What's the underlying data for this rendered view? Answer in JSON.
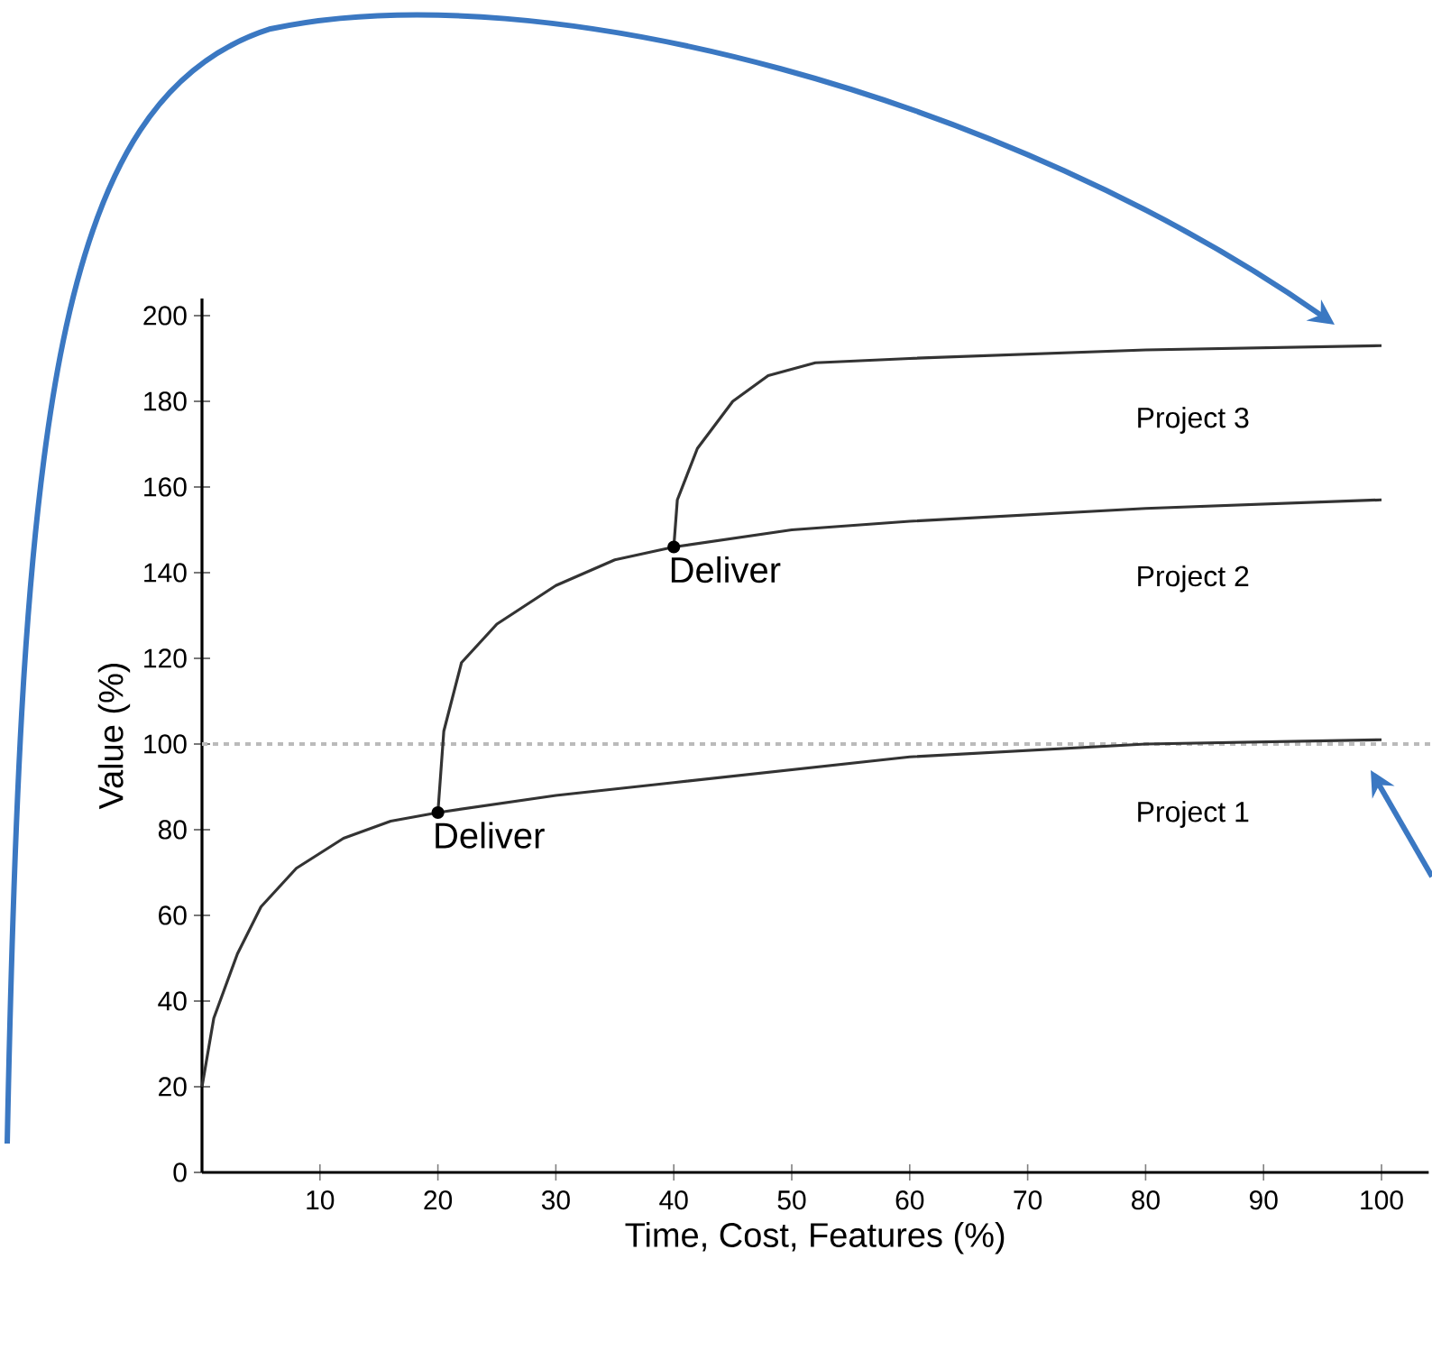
{
  "chart_data": {
    "type": "line",
    "xlabel": "Time, Cost, Features (%)",
    "ylabel": "Value (%)",
    "xlim": [
      0,
      104
    ],
    "ylim": [
      0,
      204
    ],
    "xticks": [
      10,
      20,
      30,
      40,
      50,
      60,
      70,
      80,
      90,
      100
    ],
    "yticks": [
      0,
      20,
      40,
      60,
      80,
      100,
      120,
      140,
      160,
      180,
      200
    ],
    "series": [
      {
        "name": "Project 1",
        "color": "#333333",
        "x": [
          0,
          1,
          3,
          5,
          8,
          12,
          16,
          20,
          30,
          40,
          60,
          80,
          100
        ],
        "values": [
          20,
          36,
          51,
          62,
          71,
          78,
          82,
          84,
          88,
          91,
          97,
          100,
          101
        ]
      },
      {
        "name": "Project 2",
        "color": "#333333",
        "x": [
          20,
          20.5,
          22,
          25,
          30,
          35,
          40,
          50,
          60,
          80,
          100
        ],
        "values": [
          84,
          103,
          119,
          128,
          137,
          143,
          146,
          150,
          152,
          155,
          157
        ]
      },
      {
        "name": "Project 3",
        "color": "#333333",
        "x": [
          40,
          40.3,
          42,
          45,
          48,
          52,
          60,
          80,
          100
        ],
        "values": [
          146,
          157,
          169,
          180,
          186,
          189,
          190,
          192,
          193
        ]
      }
    ],
    "ref_lines": [
      {
        "axis": "y",
        "value": 100,
        "color": "#bbbbbb",
        "line_style": "dashed"
      }
    ],
    "annotations": [
      {
        "text": "Deliver",
        "x": 20,
        "y": 84
      },
      {
        "text": "Deliver",
        "x": 40,
        "y": 146
      }
    ]
  }
}
